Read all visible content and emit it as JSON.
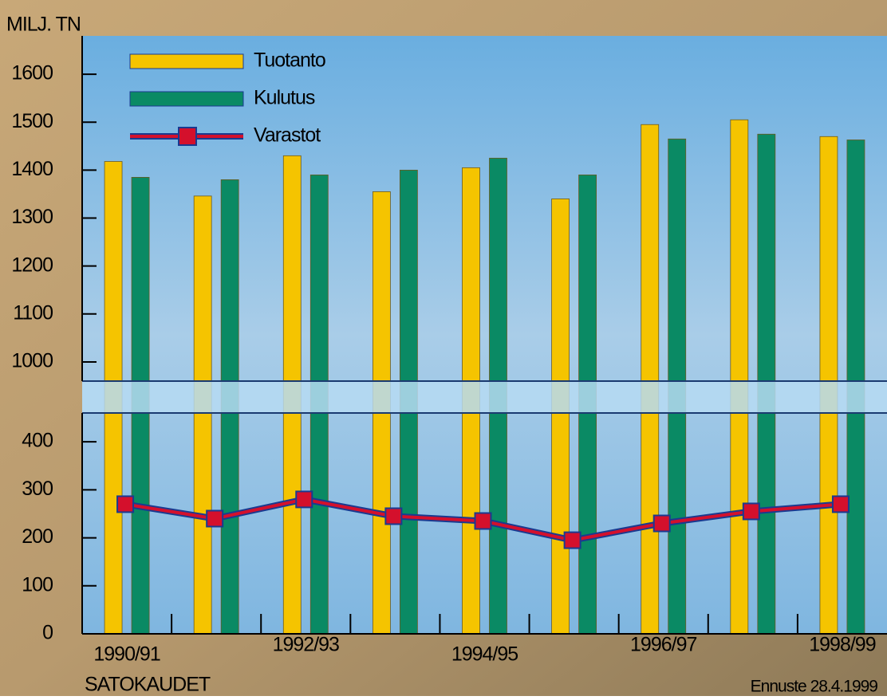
{
  "chart_data": {
    "type": "bar",
    "y_label": "MILJ. TN",
    "x_label": "SATOKAUDET",
    "note": "Ennuste 28.4.1999",
    "categories": [
      "1990/91",
      null,
      "1992/93",
      null,
      "1994/95",
      null,
      "1996/97",
      null,
      "1998/99"
    ],
    "y_segments": [
      {
        "ylim": [
          0,
          460
        ],
        "yticks": [
          0,
          100,
          200,
          300,
          400
        ]
      },
      {
        "ylim": [
          960,
          1680
        ],
        "yticks": [
          1000,
          1100,
          1200,
          1300,
          1400,
          1500,
          1600
        ]
      }
    ],
    "series": [
      {
        "name": "Tuotanto",
        "type": "bar",
        "color": "#f5c400",
        "values": [
          1418,
          1346,
          1430,
          1355,
          1405,
          1340,
          1495,
          1505,
          1470
        ]
      },
      {
        "name": "Kulutus",
        "type": "bar",
        "color": "#0a8a64",
        "values": [
          1385,
          1380,
          1390,
          1400,
          1425,
          1390,
          1465,
          1475,
          1463
        ]
      },
      {
        "name": "Varastot",
        "type": "line",
        "color": "#d4102c",
        "values": [
          270,
          240,
          280,
          245,
          235,
          195,
          230,
          255,
          270
        ]
      }
    ]
  }
}
